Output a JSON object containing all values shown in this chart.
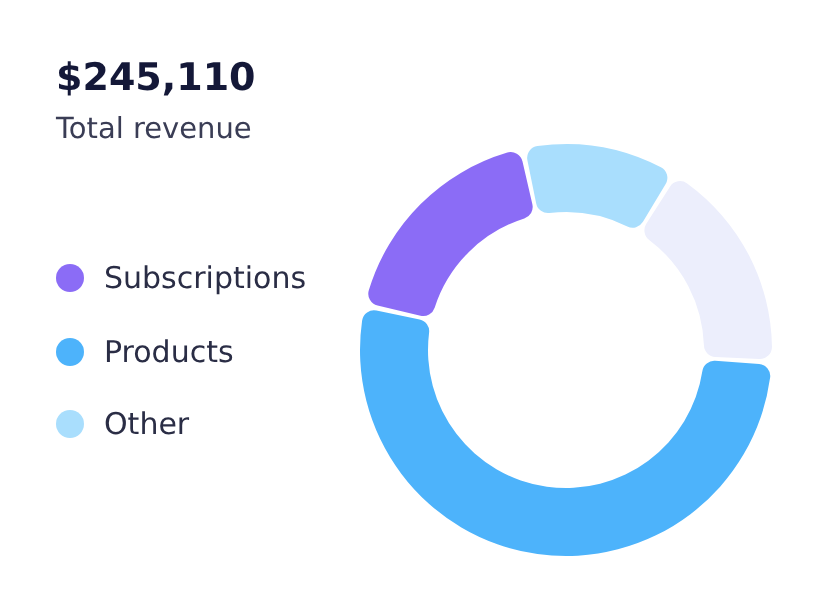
{
  "chart_data": {
    "type": "donut",
    "title": "$245,110",
    "subtitle": "Total revenue",
    "categories": [
      "Subscriptions",
      "Products",
      null,
      "Other"
    ],
    "values": [
      18,
      53,
      17,
      12
    ],
    "colors": [
      "#8b6cf6",
      "#4db3fb",
      "#eceefc",
      "#a9defd"
    ],
    "legend": "left"
  }
}
